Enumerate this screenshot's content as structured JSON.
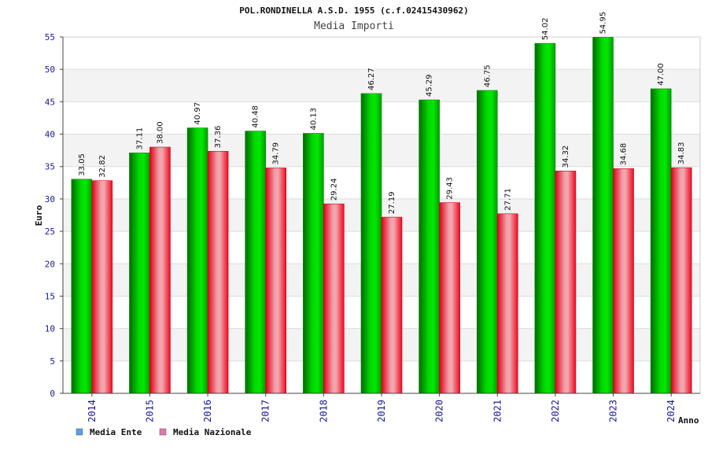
{
  "chart_data": {
    "type": "bar",
    "title": "POL.RONDINELLA A.S.D. 1955 (c.f.02415430962)",
    "subtitle": "Media Importi",
    "xlabel": "Anno",
    "ylabel": "Euro",
    "ylim": [
      0,
      55
    ],
    "yticks": [
      "0",
      "5",
      "10",
      "15",
      "20",
      "25",
      "30",
      "35",
      "40",
      "45",
      "50",
      "55"
    ],
    "grid": "horizontal-bands",
    "legend_position": "bottom-left",
    "categories": [
      "2014",
      "2015",
      "2016",
      "2017",
      "2018",
      "2019",
      "2020",
      "2021",
      "2022",
      "2023",
      "2024"
    ],
    "series": [
      {
        "name": "Media Ente",
        "color": "#00b400",
        "legend_color": "#5aa0e6",
        "values": [
          33.05,
          37.11,
          40.97,
          40.48,
          40.13,
          46.27,
          45.29,
          46.75,
          54.02,
          54.95,
          47.0
        ],
        "labels": [
          "33.05",
          "37.11",
          "40.97",
          "40.48",
          "40.13",
          "46.27",
          "45.29",
          "46.75",
          "54.02",
          "54.95",
          "47.00"
        ]
      },
      {
        "name": "Media Nazionale",
        "color": "#e8202a",
        "legend_color": "#e07aa8",
        "values": [
          32.82,
          38.0,
          37.36,
          34.79,
          29.24,
          27.19,
          29.43,
          27.71,
          34.32,
          34.68,
          34.83
        ],
        "labels": [
          "32.82",
          "38.00",
          "37.36",
          "34.79",
          "29.24",
          "27.19",
          "29.43",
          "27.71",
          "34.32",
          "34.68",
          "34.83"
        ]
      }
    ]
  }
}
